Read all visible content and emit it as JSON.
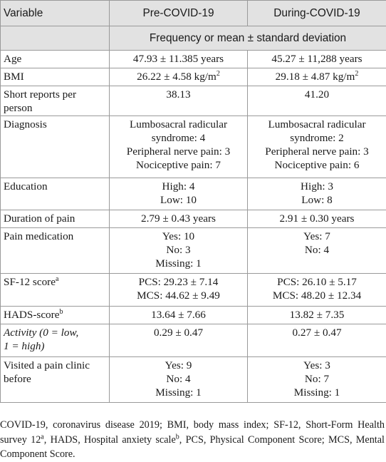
{
  "header": {
    "variable": "Variable",
    "pre": "Pre-COVID-19",
    "during": "During-COVID-19",
    "subheader": "Frequency or mean ± standard deviation"
  },
  "rows": {
    "age": {
      "label": "Age",
      "pre": "47.93 ± 11.385 years",
      "during": "45.27 ± 11,288 years"
    },
    "bmi": {
      "label": "BMI",
      "pre": "26.22 ± 4.58 kg/m",
      "during": "29.18 ± 4.87 kg/m",
      "unit_sup": "2"
    },
    "short": {
      "label_1": "Short reports per",
      "label_2": "person",
      "pre": "38.13",
      "during": "41.20"
    },
    "diagnosis": {
      "label": "Diagnosis",
      "pre": [
        "Lumbosacral radicular",
        "syndrome: 4",
        "Peripheral nerve pain: 3",
        "Nociceptive pain: 7"
      ],
      "during": [
        "Lumbosacral radicular",
        "syndrome: 2",
        "Peripheral nerve pain: 3",
        "Nociceptive pain: 6"
      ]
    },
    "education": {
      "label": "Education",
      "pre": [
        "High: 4",
        "Low: 10"
      ],
      "during": [
        "High: 3",
        "Low: 8"
      ]
    },
    "duration": {
      "label": "Duration of pain",
      "pre": "2.79 ± 0.43 years",
      "during": "2.91 ± 0.30 years"
    },
    "medication": {
      "label": "Pain medication",
      "pre": [
        "Yes: 10",
        "No: 3",
        "Missing: 1"
      ],
      "during": [
        "Yes: 7",
        "No: 4"
      ]
    },
    "sf12": {
      "label": "SF-12 score",
      "sup": "a",
      "pre": [
        "PCS: 29.23 ± 7.14",
        "MCS: 44.62 ± 9.49"
      ],
      "during": [
        "PCS: 26.10 ± 5.17",
        "MCS: 48.20 ± 12.34"
      ]
    },
    "hads": {
      "label": "HADS-score",
      "sup": "b",
      "pre": "13.64 ± 7.66",
      "during": "13.82 ± 7.35"
    },
    "activity": {
      "label_1": "Activity (0 = low,",
      "label_2": "1 = high)",
      "pre": "0.29 ± 0.47",
      "during": "0.27 ± 0.47"
    },
    "clinic": {
      "label_1": "Visited a pain clinic",
      "label_2": "before",
      "pre": [
        "Yes: 9",
        "No: 4",
        "Missing: 1"
      ],
      "during": [
        "Yes: 3",
        "No: 7",
        "Missing: 1"
      ]
    }
  },
  "footnote": {
    "part1": "COVID-19, coronavirus disease 2019; BMI, body mass index; SF-12, Short-Form Health survey 12",
    "sup_a": "a",
    "part2": ", HADS, Hospital anxiety scale",
    "sup_b": "b",
    "part3": ", PCS, Physical Component Score; MCS, Mental Component Score."
  }
}
